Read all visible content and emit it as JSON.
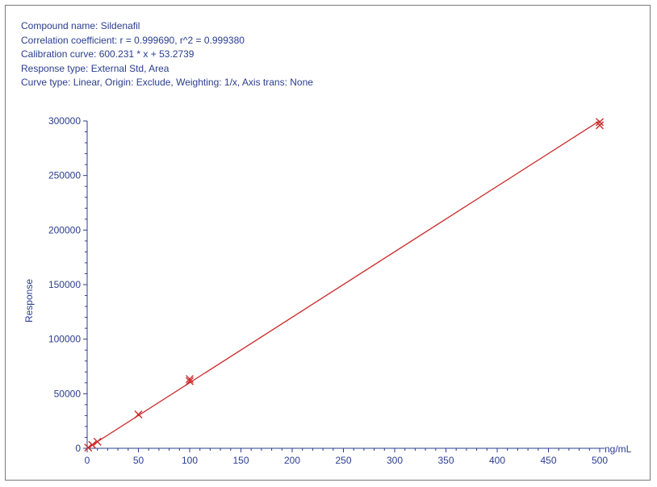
{
  "header": {
    "lines": [
      "Compound name: Sildenafil",
      "Correlation coefficient: r = 0.999690, r^2 = 0.999380",
      "Calibration curve: 600.231 * x + 53.2739",
      "Response type: External Std, Area",
      "Curve type: Linear, Origin: Exclude, Weighting: 1/x, Axis trans: None"
    ]
  },
  "colors": {
    "text": "#2a3d8f",
    "axis": "#2a3d8f",
    "fit_line": "#cc2b2b",
    "markers": "#cc2b2b",
    "frame": "#7a7a7a"
  },
  "chart_data": {
    "type": "scatter",
    "xlabel": "ng/mL",
    "ylabel": "Response",
    "xlim": [
      0,
      500
    ],
    "ylim": [
      0,
      300000
    ],
    "x_ticks": [
      0,
      50,
      100,
      150,
      200,
      250,
      300,
      350,
      400,
      450,
      500
    ],
    "y_ticks": [
      0,
      50000,
      100000,
      150000,
      200000,
      250000,
      300000
    ],
    "fit": {
      "slope": 600.231,
      "intercept": 53.2739
    },
    "points": [
      {
        "x": 1,
        "y": 650
      },
      {
        "x": 5,
        "y": 3100
      },
      {
        "x": 10,
        "y": 6000
      },
      {
        "x": 50,
        "y": 31000
      },
      {
        "x": 100,
        "y": 61500
      },
      {
        "x": 100,
        "y": 63500
      },
      {
        "x": 500,
        "y": 296000
      },
      {
        "x": 500,
        "y": 299000
      }
    ],
    "grid": false,
    "legend": "none"
  }
}
